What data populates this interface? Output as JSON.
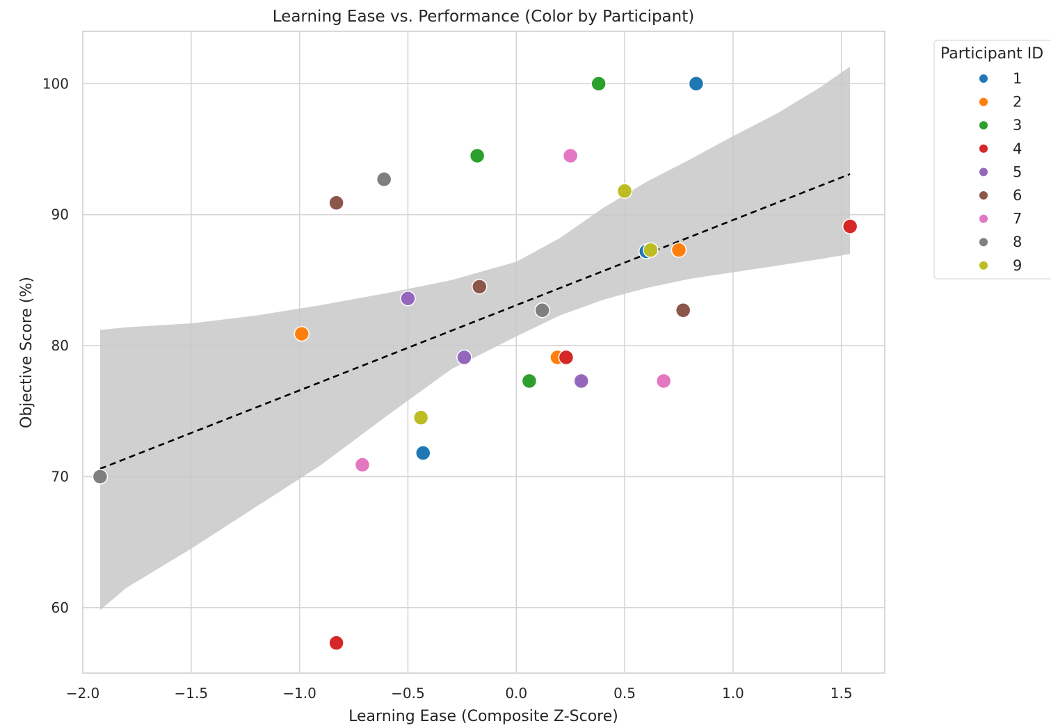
{
  "chart_data": {
    "type": "scatter",
    "title": "Learning Ease vs. Performance (Color by Participant)",
    "xlabel": "Learning Ease (Composite Z-Score)",
    "ylabel": "Objective Score (%)",
    "xlim": [
      -2.0,
      1.7
    ],
    "ylim": [
      55,
      104
    ],
    "xticks": [
      -2.0,
      -1.5,
      -1.0,
      -0.5,
      0.0,
      0.5,
      1.0,
      1.5
    ],
    "xtick_labels": [
      "−2.0",
      "−1.5",
      "−1.0",
      "−0.5",
      "0.0",
      "0.5",
      "1.0",
      "1.5"
    ],
    "yticks": [
      60,
      70,
      80,
      90,
      100
    ],
    "ytick_labels": [
      "60",
      "70",
      "80",
      "90",
      "100"
    ],
    "grid": true,
    "legend": {
      "title": "Participant ID",
      "position": "outside-top-right",
      "entries": [
        {
          "label": "1",
          "color": "#1f77b4"
        },
        {
          "label": "2",
          "color": "#ff7f0e"
        },
        {
          "label": "3",
          "color": "#2ca02c"
        },
        {
          "label": "4",
          "color": "#d62728"
        },
        {
          "label": "5",
          "color": "#9467bd"
        },
        {
          "label": "6",
          "color": "#8c564b"
        },
        {
          "label": "7",
          "color": "#e377c2"
        },
        {
          "label": "8",
          "color": "#7f7f7f"
        },
        {
          "label": "9",
          "color": "#bcbd22"
        }
      ]
    },
    "series": [
      {
        "name": "1",
        "color": "#1f77b4",
        "points": [
          [
            0.83,
            100.0
          ],
          [
            0.6,
            87.2
          ],
          [
            -0.43,
            71.8
          ]
        ]
      },
      {
        "name": "2",
        "color": "#ff7f0e",
        "points": [
          [
            0.75,
            87.3
          ],
          [
            -0.99,
            80.9
          ],
          [
            0.19,
            79.1
          ]
        ]
      },
      {
        "name": "3",
        "color": "#2ca02c",
        "points": [
          [
            0.38,
            100.0
          ],
          [
            -0.18,
            94.5
          ],
          [
            0.06,
            77.3
          ]
        ]
      },
      {
        "name": "4",
        "color": "#d62728",
        "points": [
          [
            1.54,
            89.1
          ],
          [
            0.23,
            79.1
          ],
          [
            -0.83,
            57.3
          ]
        ]
      },
      {
        "name": "5",
        "color": "#9467bd",
        "points": [
          [
            -0.5,
            83.6
          ],
          [
            -0.24,
            79.1
          ],
          [
            0.3,
            77.3
          ]
        ]
      },
      {
        "name": "6",
        "color": "#8c564b",
        "points": [
          [
            -0.83,
            90.9
          ],
          [
            -0.17,
            84.5
          ],
          [
            0.77,
            82.7
          ]
        ]
      },
      {
        "name": "7",
        "color": "#e377c2",
        "points": [
          [
            0.25,
            94.5
          ],
          [
            0.68,
            77.3
          ],
          [
            -0.71,
            70.9
          ]
        ]
      },
      {
        "name": "8",
        "color": "#7f7f7f",
        "points": [
          [
            -0.61,
            92.7
          ],
          [
            0.12,
            82.7
          ],
          [
            -1.92,
            70.0
          ]
        ]
      },
      {
        "name": "9",
        "color": "#bcbd22",
        "points": [
          [
            0.5,
            91.8
          ],
          [
            0.62,
            87.3
          ],
          [
            -0.44,
            74.5
          ]
        ]
      }
    ],
    "regression": {
      "style": "dashed",
      "color": "#000000",
      "x": [
        -1.92,
        1.54
      ],
      "y": [
        70.6,
        93.1
      ]
    },
    "confidence_band": {
      "color": "#c8c8c8",
      "x": [
        -1.92,
        -1.8,
        -1.5,
        -1.2,
        -0.9,
        -0.6,
        -0.3,
        0.0,
        0.2,
        0.4,
        0.6,
        0.8,
        1.0,
        1.2,
        1.4,
        1.54
      ],
      "upper": [
        81.2,
        81.4,
        81.7,
        82.3,
        83.1,
        84.0,
        85.0,
        86.4,
        88.2,
        90.5,
        92.5,
        94.2,
        96.0,
        97.7,
        99.7,
        101.3
      ],
      "lower": [
        59.8,
        61.5,
        64.5,
        67.7,
        70.9,
        74.6,
        78.2,
        80.7,
        82.3,
        83.5,
        84.4,
        85.1,
        85.6,
        86.1,
        86.6,
        87.0
      ]
    }
  }
}
